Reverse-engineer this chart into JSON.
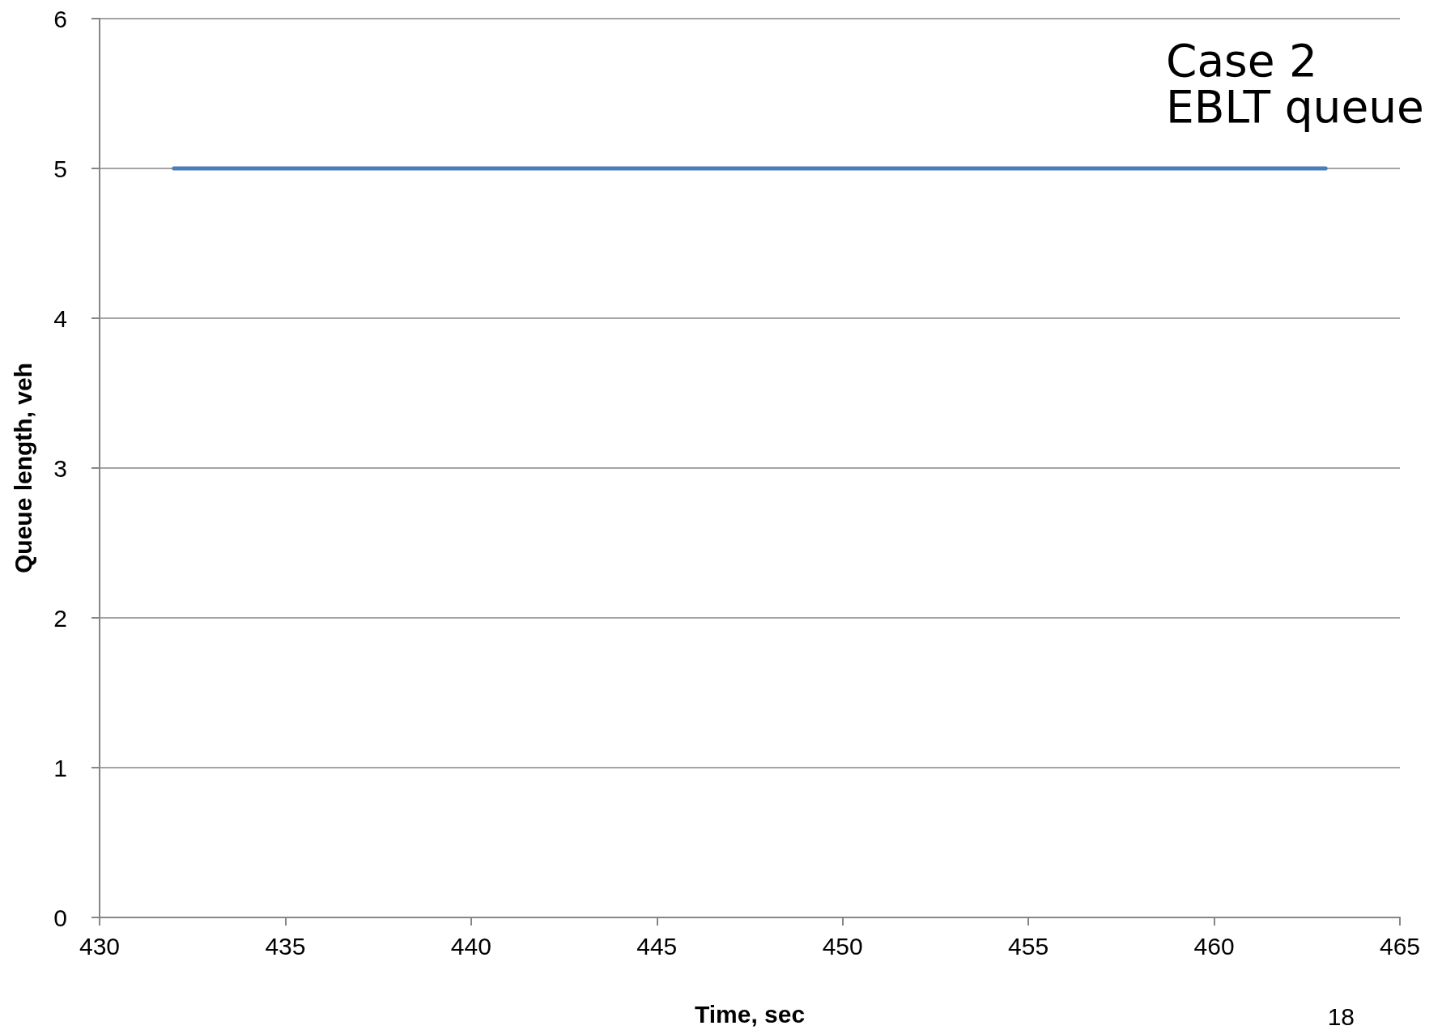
{
  "chart_data": {
    "type": "line",
    "title": "Case 2 EBLT queue",
    "xlabel": "Time, sec",
    "ylabel": "Queue length, veh",
    "annotations": [
      "18"
    ],
    "series": [
      {
        "x": [
          432,
          463
        ],
        "values": [
          5,
          5
        ],
        "color": "#4a7ebb"
      }
    ],
    "xlim": [
      430,
      465
    ],
    "xticks": [
      430,
      435,
      440,
      445,
      450,
      455,
      460,
      465
    ],
    "ylim": [
      0,
      6
    ],
    "yticks": [
      0,
      1,
      2,
      3,
      4,
      5,
      6
    ],
    "grid": "y",
    "marker": "none",
    "line_style": "solid"
  }
}
